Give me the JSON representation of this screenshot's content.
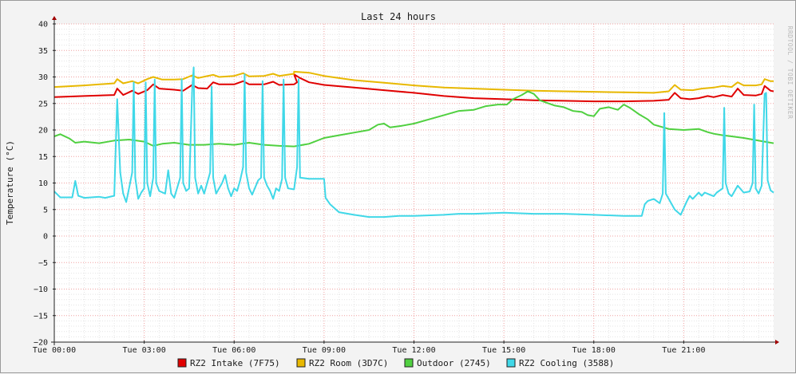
{
  "chart_data": {
    "type": "line",
    "title": "Last 24 hours",
    "ylabel": "Temperature (°C)",
    "watermark": "RRDTOOL / TOBI OETIKER",
    "xlim": [
      0,
      24
    ],
    "ylim": [
      -20,
      40
    ],
    "yticks": [
      40,
      35,
      30,
      25,
      20,
      15,
      10,
      5,
      0,
      -5,
      -10,
      -15,
      -20
    ],
    "xticks": [
      {
        "h": 0,
        "label": "Tue 00:00"
      },
      {
        "h": 3,
        "label": "Tue 03:00"
      },
      {
        "h": 6,
        "label": "Tue 06:00"
      },
      {
        "h": 9,
        "label": "Tue 09:00"
      },
      {
        "h": 12,
        "label": "Tue 12:00"
      },
      {
        "h": 15,
        "label": "Tue 15:00"
      },
      {
        "h": 18,
        "label": "Tue 18:00"
      },
      {
        "h": 21,
        "label": "Tue 21:00"
      }
    ],
    "grid": true,
    "legend_position": "bottom",
    "series": [
      {
        "name": "RZ2 Intake (7F75)",
        "color": "#e00000",
        "points": [
          [
            0,
            26.2
          ],
          [
            1,
            26.4
          ],
          [
            2,
            26.6
          ],
          [
            2.1,
            27.8
          ],
          [
            2.3,
            26.6
          ],
          [
            2.6,
            27.4
          ],
          [
            2.8,
            26.8
          ],
          [
            3.1,
            27.5
          ],
          [
            3.3,
            28.6
          ],
          [
            3.5,
            27.8
          ],
          [
            4,
            27.6
          ],
          [
            4.3,
            27.4
          ],
          [
            4.6,
            28.5
          ],
          [
            4.8,
            27.9
          ],
          [
            5.1,
            27.8
          ],
          [
            5.3,
            29.0
          ],
          [
            5.5,
            28.6
          ],
          [
            6,
            28.6
          ],
          [
            6.3,
            29.2
          ],
          [
            6.5,
            28.6
          ],
          [
            7,
            28.6
          ],
          [
            7.3,
            29.1
          ],
          [
            7.5,
            28.5
          ],
          [
            8,
            28.6
          ],
          [
            8.1,
            29.0
          ],
          [
            8,
            30.5
          ],
          [
            8.2,
            29.8
          ],
          [
            8.5,
            29.0
          ],
          [
            9,
            28.5
          ],
          [
            10,
            28.0
          ],
          [
            11,
            27.5
          ],
          [
            12,
            27.0
          ],
          [
            13,
            26.4
          ],
          [
            14,
            26.0
          ],
          [
            15,
            25.8
          ],
          [
            16,
            25.6
          ],
          [
            17,
            25.5
          ],
          [
            18,
            25.4
          ],
          [
            19,
            25.4
          ],
          [
            20,
            25.5
          ],
          [
            20.5,
            25.7
          ],
          [
            20.7,
            27.0
          ],
          [
            20.9,
            26.0
          ],
          [
            21.2,
            25.8
          ],
          [
            21.5,
            26.0
          ],
          [
            21.8,
            26.4
          ],
          [
            22,
            26.2
          ],
          [
            22.3,
            26.6
          ],
          [
            22.6,
            26.3
          ],
          [
            22.8,
            27.8
          ],
          [
            23,
            26.6
          ],
          [
            23.4,
            26.5
          ],
          [
            23.6,
            26.8
          ],
          [
            23.7,
            28.3
          ],
          [
            23.9,
            27.4
          ],
          [
            24,
            27.3
          ]
        ]
      },
      {
        "name": "RZ2 Room (3D7C)",
        "color": "#e8b800",
        "points": [
          [
            0,
            28.1
          ],
          [
            1,
            28.4
          ],
          [
            2,
            28.8
          ],
          [
            2.1,
            29.6
          ],
          [
            2.3,
            28.8
          ],
          [
            2.6,
            29.2
          ],
          [
            2.8,
            28.8
          ],
          [
            3.1,
            29.6
          ],
          [
            3.3,
            30.0
          ],
          [
            3.6,
            29.5
          ],
          [
            4,
            29.5
          ],
          [
            4.3,
            29.6
          ],
          [
            4.6,
            30.3
          ],
          [
            4.8,
            29.8
          ],
          [
            5.3,
            30.4
          ],
          [
            5.5,
            30.0
          ],
          [
            6,
            30.2
          ],
          [
            6.3,
            30.7
          ],
          [
            6.5,
            30.1
          ],
          [
            7,
            30.2
          ],
          [
            7.3,
            30.6
          ],
          [
            7.5,
            30.2
          ],
          [
            8,
            30.6
          ],
          [
            8,
            31.0
          ],
          [
            8.5,
            30.8
          ],
          [
            9,
            30.2
          ],
          [
            10,
            29.4
          ],
          [
            11,
            28.9
          ],
          [
            12,
            28.4
          ],
          [
            13,
            28.0
          ],
          [
            14,
            27.8
          ],
          [
            15,
            27.6
          ],
          [
            16,
            27.4
          ],
          [
            17,
            27.3
          ],
          [
            18,
            27.2
          ],
          [
            19,
            27.1
          ],
          [
            20,
            27.0
          ],
          [
            20.5,
            27.3
          ],
          [
            20.7,
            28.5
          ],
          [
            20.9,
            27.6
          ],
          [
            21.3,
            27.5
          ],
          [
            21.6,
            27.8
          ],
          [
            22,
            28.0
          ],
          [
            22.3,
            28.3
          ],
          [
            22.6,
            28.1
          ],
          [
            22.8,
            29.0
          ],
          [
            23,
            28.4
          ],
          [
            23.4,
            28.4
          ],
          [
            23.6,
            28.6
          ],
          [
            23.7,
            29.6
          ],
          [
            23.9,
            29.2
          ],
          [
            24,
            29.2
          ]
        ]
      },
      {
        "name": "Outdoor (2745)",
        "color": "#50d040",
        "points": [
          [
            0,
            18.8
          ],
          [
            0.2,
            19.2
          ],
          [
            0.5,
            18.4
          ],
          [
            0.7,
            17.6
          ],
          [
            1,
            17.8
          ],
          [
            1.5,
            17.5
          ],
          [
            2,
            18.0
          ],
          [
            2.5,
            18.2
          ],
          [
            3,
            17.8
          ],
          [
            3.3,
            17.0
          ],
          [
            3.6,
            17.4
          ],
          [
            4,
            17.6
          ],
          [
            4.5,
            17.2
          ],
          [
            5,
            17.2
          ],
          [
            5.5,
            17.4
          ],
          [
            6,
            17.2
          ],
          [
            6.5,
            17.6
          ],
          [
            7,
            17.2
          ],
          [
            7.5,
            17.0
          ],
          [
            8,
            16.9
          ],
          [
            8.5,
            17.4
          ],
          [
            9,
            18.5
          ],
          [
            9.5,
            19.0
          ],
          [
            10,
            19.5
          ],
          [
            10.5,
            20.0
          ],
          [
            10.8,
            21.0
          ],
          [
            11,
            21.2
          ],
          [
            11.2,
            20.5
          ],
          [
            11.6,
            20.8
          ],
          [
            12,
            21.2
          ],
          [
            12.5,
            22.0
          ],
          [
            13,
            22.8
          ],
          [
            13.5,
            23.6
          ],
          [
            14,
            23.8
          ],
          [
            14.4,
            24.5
          ],
          [
            14.8,
            24.8
          ],
          [
            15.1,
            24.8
          ],
          [
            15.3,
            25.8
          ],
          [
            15.6,
            26.6
          ],
          [
            15.8,
            27.3
          ],
          [
            16,
            26.8
          ],
          [
            16.2,
            25.6
          ],
          [
            16.5,
            25.0
          ],
          [
            16.7,
            24.6
          ],
          [
            17,
            24.3
          ],
          [
            17.3,
            23.6
          ],
          [
            17.6,
            23.4
          ],
          [
            17.8,
            22.8
          ],
          [
            18,
            22.6
          ],
          [
            18.2,
            24.0
          ],
          [
            18.5,
            24.3
          ],
          [
            18.8,
            23.8
          ],
          [
            19,
            24.8
          ],
          [
            19.2,
            24.2
          ],
          [
            19.5,
            23.0
          ],
          [
            19.8,
            22.0
          ],
          [
            20,
            21.0
          ],
          [
            20.5,
            20.2
          ],
          [
            21,
            20.0
          ],
          [
            21.5,
            20.2
          ],
          [
            21.8,
            19.6
          ],
          [
            22,
            19.3
          ],
          [
            22.3,
            19.0
          ],
          [
            22.6,
            18.8
          ],
          [
            23,
            18.5
          ],
          [
            23.3,
            18.2
          ],
          [
            23.6,
            17.9
          ],
          [
            24,
            17.5
          ]
        ]
      },
      {
        "name": "RZ2 Cooling (3588)",
        "color": "#40d8e8",
        "points": [
          [
            0,
            8.4
          ],
          [
            0.2,
            7.3
          ],
          [
            0.6,
            7.3
          ],
          [
            0.7,
            10.4
          ],
          [
            0.8,
            7.6
          ],
          [
            1,
            7.2
          ],
          [
            1.5,
            7.4
          ],
          [
            1.7,
            7.2
          ],
          [
            2,
            7.6
          ],
          [
            2.1,
            25.8
          ],
          [
            2.2,
            12.0
          ],
          [
            2.3,
            8.0
          ],
          [
            2.4,
            6.4
          ],
          [
            2.5,
            9.2
          ],
          [
            2.6,
            12.0
          ],
          [
            2.65,
            29.0
          ],
          [
            2.7,
            11.0
          ],
          [
            2.8,
            7.0
          ],
          [
            2.9,
            8.2
          ],
          [
            3.0,
            9.0
          ],
          [
            3.05,
            29.0
          ],
          [
            3.1,
            10.0
          ],
          [
            3.2,
            7.5
          ],
          [
            3.3,
            11.0
          ],
          [
            3.35,
            29.5
          ],
          [
            3.4,
            10.0
          ],
          [
            3.5,
            8.5
          ],
          [
            3.7,
            8.0
          ],
          [
            3.8,
            12.4
          ],
          [
            3.9,
            8.0
          ],
          [
            4.0,
            7.2
          ],
          [
            4.2,
            11.0
          ],
          [
            4.25,
            29.6
          ],
          [
            4.3,
            10.0
          ],
          [
            4.4,
            8.5
          ],
          [
            4.5,
            9.0
          ],
          [
            4.6,
            27.6
          ],
          [
            4.65,
            31.8
          ],
          [
            4.7,
            11.0
          ],
          [
            4.8,
            8.0
          ],
          [
            4.9,
            9.5
          ],
          [
            5.0,
            8.0
          ],
          [
            5.1,
            10.0
          ],
          [
            5.2,
            12.0
          ],
          [
            5.25,
            28.2
          ],
          [
            5.3,
            11.0
          ],
          [
            5.4,
            8.0
          ],
          [
            5.6,
            10.0
          ],
          [
            5.7,
            11.5
          ],
          [
            5.8,
            9.0
          ],
          [
            5.9,
            7.5
          ],
          [
            6.0,
            9.0
          ],
          [
            6.1,
            8.5
          ],
          [
            6.2,
            10.5
          ],
          [
            6.3,
            13.0
          ],
          [
            6.35,
            30.5
          ],
          [
            6.4,
            12.0
          ],
          [
            6.5,
            9.0
          ],
          [
            6.6,
            7.8
          ],
          [
            6.8,
            10.5
          ],
          [
            6.9,
            11.0
          ],
          [
            6.95,
            29.2
          ],
          [
            7.0,
            11.0
          ],
          [
            7.1,
            9.5
          ],
          [
            7.2,
            8.5
          ],
          [
            7.3,
            7.0
          ],
          [
            7.4,
            9.0
          ],
          [
            7.5,
            8.5
          ],
          [
            7.6,
            10.8
          ],
          [
            7.65,
            29.5
          ],
          [
            7.7,
            11.0
          ],
          [
            7.8,
            9.0
          ],
          [
            8.0,
            8.8
          ],
          [
            8.1,
            13.0
          ],
          [
            8.15,
            29.6
          ],
          [
            8.2,
            11.0
          ],
          [
            8.5,
            10.8
          ],
          [
            9,
            10.8
          ],
          [
            9.05,
            7.2
          ],
          [
            9.2,
            6.0
          ],
          [
            9.5,
            4.5
          ],
          [
            10,
            4.0
          ],
          [
            10.5,
            3.6
          ],
          [
            11,
            3.6
          ],
          [
            11.5,
            3.8
          ],
          [
            12,
            3.8
          ],
          [
            13,
            4.0
          ],
          [
            13.5,
            4.2
          ],
          [
            14,
            4.2
          ],
          [
            15,
            4.4
          ],
          [
            16,
            4.2
          ],
          [
            17,
            4.2
          ],
          [
            18,
            4.0
          ],
          [
            19,
            3.8
          ],
          [
            19.6,
            3.8
          ],
          [
            19.7,
            6.0
          ],
          [
            19.8,
            6.6
          ],
          [
            20,
            7.0
          ],
          [
            20.2,
            6.2
          ],
          [
            20.3,
            8.0
          ],
          [
            20.35,
            23.2
          ],
          [
            20.4,
            8.0
          ],
          [
            20.5,
            7.0
          ],
          [
            20.7,
            5.0
          ],
          [
            20.9,
            4.0
          ],
          [
            21.1,
            6.5
          ],
          [
            21.2,
            7.6
          ],
          [
            21.3,
            7.0
          ],
          [
            21.5,
            8.2
          ],
          [
            21.6,
            7.6
          ],
          [
            21.7,
            8.2
          ],
          [
            22,
            7.5
          ],
          [
            22.1,
            8.2
          ],
          [
            22.3,
            9.0
          ],
          [
            22.35,
            24.2
          ],
          [
            22.4,
            10.0
          ],
          [
            22.5,
            8.0
          ],
          [
            22.6,
            7.5
          ],
          [
            22.8,
            9.5
          ],
          [
            23,
            8.2
          ],
          [
            23.2,
            8.4
          ],
          [
            23.3,
            10.0
          ],
          [
            23.35,
            24.8
          ],
          [
            23.4,
            9.0
          ],
          [
            23.5,
            8.0
          ],
          [
            23.6,
            9.5
          ],
          [
            23.7,
            26.8
          ],
          [
            23.75,
            27.0
          ],
          [
            23.8,
            10.5
          ],
          [
            23.9,
            8.6
          ],
          [
            24,
            8.2
          ]
        ]
      }
    ]
  }
}
